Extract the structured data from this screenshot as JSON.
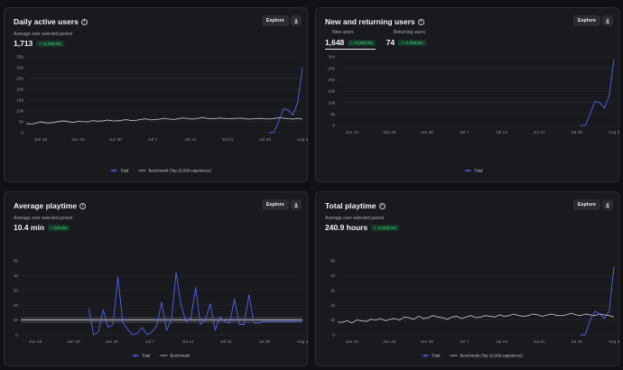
{
  "explore_label": "Explore",
  "cards": {
    "dau": {
      "title": "Daily active users",
      "subtitle": "Average over selected period",
      "value": "1,713",
      "badge": "+ >1,000.0%"
    },
    "new_returning": {
      "title": "New and returning users",
      "tabs": [
        {
          "label": "New users",
          "value": "1,648",
          "badge": "+ >1,000.0%"
        },
        {
          "label": "Returning users",
          "value": "74",
          "badge": "+ >1,000.0%"
        }
      ]
    },
    "avg_playtime": {
      "title": "Average playtime",
      "subtitle": "Average over selected period",
      "value": "10.4 min",
      "badge": "+ 120.9%"
    },
    "total_playtime": {
      "title": "Total playtime",
      "subtitle": "Average over selected period",
      "value": "240.9 hours",
      "badge": "+ >1,000.0%"
    }
  },
  "chart_data": [
    {
      "id": "dau",
      "type": "line",
      "x_ticks": [
        "Jun 16",
        "Jun 23",
        "Jun 30",
        "Jul 7",
        "Jul 14",
        "Jul 21",
        "Jul 28",
        "Aug 4"
      ],
      "y_ticks": [
        "0",
        "5k",
        "10k",
        "15k",
        "20k",
        "25k",
        "30k",
        "35k"
      ],
      "ylim": [
        0,
        35000
      ],
      "x": [
        0,
        1,
        2,
        3,
        4,
        5,
        6,
        7,
        8,
        9,
        10,
        11,
        12,
        13,
        14,
        15,
        16,
        17,
        18,
        19,
        20,
        21,
        22,
        23,
        24,
        25,
        26,
        27,
        28,
        29,
        30,
        31,
        32,
        33,
        34,
        35,
        36,
        37,
        38,
        39,
        40,
        41,
        42,
        43,
        44,
        45,
        46,
        47,
        48,
        49,
        50,
        51,
        52,
        53,
        54,
        55,
        56,
        57,
        58
      ],
      "series": [
        {
          "name": "Total",
          "color": "#4f63f0",
          "values": [
            null,
            null,
            null,
            null,
            null,
            null,
            null,
            null,
            null,
            null,
            null,
            null,
            null,
            null,
            null,
            null,
            null,
            null,
            null,
            null,
            null,
            null,
            null,
            null,
            null,
            null,
            null,
            null,
            null,
            null,
            null,
            null,
            null,
            null,
            null,
            null,
            null,
            null,
            null,
            null,
            null,
            null,
            null,
            null,
            null,
            null,
            null,
            null,
            null,
            null,
            null,
            0,
            0,
            5000,
            11000,
            10500,
            8000,
            14000,
            30000
          ]
        },
        {
          "name": "Benchmark (Top 10,000 experience)",
          "color": "#b9bbc1",
          "values": [
            4200,
            4000,
            4300,
            5000,
            4600,
            4500,
            4800,
            5200,
            5400,
            5000,
            4700,
            5300,
            5100,
            5000,
            5600,
            5300,
            5400,
            5800,
            5500,
            5400,
            5700,
            6000,
            5600,
            5700,
            6100,
            6400,
            5900,
            6000,
            6200,
            6600,
            6300,
            6100,
            6500,
            6800,
            6400,
            6300,
            6600,
            7000,
            6600,
            6400,
            6600,
            6700,
            6500,
            6400,
            6600,
            6700,
            6400,
            6300,
            6500,
            6600,
            6400,
            6300,
            6500,
            6900,
            6700,
            6400,
            6300,
            6600,
            6200
          ]
        }
      ]
    },
    {
      "id": "new_returning",
      "type": "line",
      "x_ticks": [
        "Jun 16",
        "Jun 23",
        "Jun 30",
        "Jul 7",
        "Jul 14",
        "Jul 21",
        "Jul 28",
        "Aug 4"
      ],
      "y_ticks": [
        "0",
        "5k",
        "10k",
        "15k",
        "20k",
        "25k",
        "30k"
      ],
      "ylim": [
        0,
        30000
      ],
      "x": [
        0,
        1,
        2,
        3,
        4,
        5,
        6,
        7,
        8,
        9,
        10,
        11,
        12,
        13,
        14,
        15,
        16,
        17,
        18,
        19,
        20,
        21,
        22,
        23,
        24,
        25,
        26,
        27,
        28,
        29,
        30,
        31,
        32,
        33,
        34,
        35,
        36,
        37,
        38,
        39,
        40,
        41,
        42,
        43,
        44,
        45,
        46,
        47,
        48,
        49,
        50,
        51,
        52,
        53,
        54,
        55,
        56,
        57,
        58
      ],
      "series": [
        {
          "name": "Total",
          "color": "#4f63f0",
          "values": [
            null,
            null,
            null,
            null,
            null,
            null,
            null,
            null,
            null,
            null,
            null,
            null,
            null,
            null,
            null,
            null,
            null,
            null,
            null,
            null,
            null,
            null,
            null,
            null,
            null,
            null,
            null,
            null,
            null,
            null,
            null,
            null,
            null,
            null,
            null,
            null,
            null,
            null,
            null,
            null,
            null,
            null,
            null,
            null,
            null,
            null,
            null,
            null,
            null,
            null,
            null,
            0,
            0,
            5000,
            10500,
            10000,
            7500,
            13000,
            29000
          ]
        }
      ]
    },
    {
      "id": "avg_playtime",
      "type": "line",
      "x_ticks": [
        "Jun 16",
        "Jun 23",
        "Jun 30",
        "Jul 7",
        "Jul 14",
        "Jul 21",
        "Jul 28",
        "Aug 4"
      ],
      "y_ticks": [
        "0",
        "10",
        "20",
        "30",
        "40",
        "50"
      ],
      "ylim": [
        0,
        50
      ],
      "x": [
        0,
        1,
        2,
        3,
        4,
        5,
        6,
        7,
        8,
        9,
        10,
        11,
        12,
        13,
        14,
        15,
        16,
        17,
        18,
        19,
        20,
        21,
        22,
        23,
        24,
        25,
        26,
        27,
        28,
        29,
        30,
        31,
        32,
        33,
        34,
        35,
        36,
        37,
        38,
        39,
        40,
        41,
        42,
        43,
        44,
        45,
        46,
        47,
        48,
        49,
        50,
        51,
        52,
        53,
        54,
        55,
        56,
        57,
        58
      ],
      "series": [
        {
          "name": "Total",
          "color": "#4f63f0",
          "values": [
            null,
            null,
            null,
            null,
            null,
            null,
            null,
            null,
            null,
            null,
            null,
            null,
            null,
            null,
            18,
            0,
            2,
            17,
            5,
            7,
            39,
            8,
            4,
            0,
            1,
            5,
            0,
            2,
            6,
            22,
            3,
            10,
            42,
            20,
            9,
            11,
            32,
            7,
            10,
            21,
            3,
            12,
            9,
            8,
            24,
            7,
            7,
            27,
            8,
            8,
            9,
            9,
            9,
            9,
            9,
            9,
            9,
            9,
            9
          ]
        },
        {
          "name": "Benchmark",
          "color": "#b9bbc1",
          "values": [
            10,
            10,
            10,
            10,
            10,
            10,
            10,
            10,
            10,
            10,
            10,
            10,
            10,
            10,
            10,
            10,
            10,
            10,
            10,
            10,
            10,
            10,
            10,
            10,
            10,
            10,
            10,
            10,
            10,
            10,
            10,
            10,
            10,
            10,
            10,
            10,
            10,
            10,
            10,
            10,
            10,
            10,
            10,
            10,
            10,
            10,
            10,
            10,
            10,
            10,
            10,
            10,
            10,
            10,
            10,
            10,
            10,
            10,
            10
          ]
        }
      ]
    },
    {
      "id": "total_playtime",
      "type": "line",
      "x_ticks": [
        "Jun 16",
        "Jun 23",
        "Jun 30",
        "Jul 7",
        "Jul 14",
        "Jul 21",
        "Jul 28",
        "Aug 4"
      ],
      "y_ticks": [
        "0",
        "1k",
        "2k",
        "3k",
        "4k",
        "5k"
      ],
      "ylim": [
        0,
        5000
      ],
      "x": [
        0,
        1,
        2,
        3,
        4,
        5,
        6,
        7,
        8,
        9,
        10,
        11,
        12,
        13,
        14,
        15,
        16,
        17,
        18,
        19,
        20,
        21,
        22,
        23,
        24,
        25,
        26,
        27,
        28,
        29,
        30,
        31,
        32,
        33,
        34,
        35,
        36,
        37,
        38,
        39,
        40,
        41,
        42,
        43,
        44,
        45,
        46,
        47,
        48,
        49,
        50,
        51,
        52,
        53,
        54,
        55,
        56,
        57,
        58
      ],
      "series": [
        {
          "name": "Total",
          "color": "#4f63f0",
          "values": [
            null,
            null,
            null,
            null,
            null,
            null,
            null,
            null,
            null,
            null,
            null,
            null,
            null,
            null,
            null,
            null,
            null,
            null,
            null,
            null,
            null,
            null,
            null,
            null,
            null,
            null,
            null,
            null,
            null,
            null,
            null,
            null,
            null,
            null,
            null,
            null,
            null,
            null,
            null,
            null,
            null,
            null,
            null,
            null,
            null,
            null,
            null,
            null,
            null,
            null,
            null,
            0,
            0,
            1000,
            1600,
            1400,
            1100,
            1600,
            4600
          ]
        },
        {
          "name": "Benchmark (Top 10,000 experience)",
          "color": "#b9bbc1",
          "values": [
            850,
            850,
            950,
            800,
            1000,
            950,
            900,
            1050,
            1000,
            1100,
            950,
            1050,
            1100,
            1000,
            1200,
            1150,
            1050,
            1250,
            1100,
            1150,
            1300,
            1200,
            1150,
            1050,
            1200,
            1250,
            1100,
            1200,
            1300,
            1150,
            1200,
            1300,
            1250,
            1200,
            1350,
            1250,
            1300,
            1400,
            1300,
            1250,
            1300,
            1400,
            1350,
            1250,
            1350,
            1400,
            1300,
            1300,
            1350,
            1450,
            1350,
            1300,
            1400,
            1350,
            1300,
            1400,
            1350,
            1300,
            1200
          ]
        }
      ]
    }
  ]
}
